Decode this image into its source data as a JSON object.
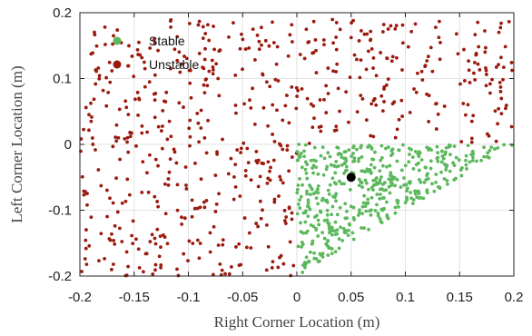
{
  "chart_data": {
    "type": "scatter",
    "xlabel": "Right Corner Location (m)",
    "ylabel": "Left Corner Location (m)",
    "xlim": [
      -0.2,
      0.2
    ],
    "ylim": [
      -0.2,
      0.2
    ],
    "xticks": [
      -0.2,
      -0.15,
      -0.1,
      -0.05,
      0,
      0.05,
      0.1,
      0.15,
      0.2
    ],
    "yticks": [
      -0.2,
      -0.1,
      0,
      0.1,
      0.2
    ],
    "xtick_labels": [
      "-0.2",
      "-0.15",
      "-0.1",
      "-0.05",
      "0",
      "0.05",
      "0.1",
      "0.15",
      "0.2"
    ],
    "ytick_labels": [
      "-0.2",
      "-0.1",
      "0",
      "0.1",
      "0.2"
    ],
    "grid": true,
    "legend_position": "top-left",
    "series": [
      {
        "name": "Stable",
        "color": "#5cb85c",
        "region": "0 <= x <= 0.2, -0.2 <= y <= 0, y >= x - 0.2",
        "approx_point_count": 480
      },
      {
        "name": "Unstable",
        "color": "#9b1a0e",
        "region": "-0.2 <= x <= 0.2, y >= x - 0.2 (x<0) and y > 0 (x>=0)",
        "approx_point_count": 620
      }
    ],
    "highlight_point": {
      "x": 0.05,
      "y": -0.05,
      "color": "#000000"
    }
  }
}
